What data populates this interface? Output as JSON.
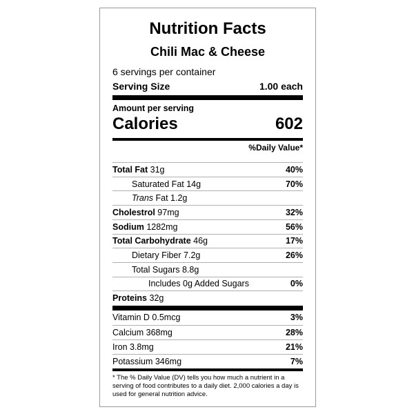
{
  "label": {
    "title": "Nutrition Facts",
    "product": "Chili Mac & Cheese",
    "servings_per_container": "6 servings per container",
    "serving_size_label": "Serving Size",
    "serving_size_value": "1.00 each",
    "amount_per_serving": "Amount per serving",
    "calories_label": "Calories",
    "calories_value": "602",
    "daily_value_header": "%Daily Value*",
    "total_fat": {
      "name": "Total Fat",
      "amount": " 31g",
      "dv": "40%"
    },
    "saturated_fat": {
      "name": "Saturated Fat 14g",
      "dv": "70%"
    },
    "trans_fat": {
      "italic": "Trans",
      "rest": " Fat 1.2g"
    },
    "cholesterol": {
      "name": "Cholestrol",
      "amount": " 97mg",
      "dv": "32%"
    },
    "sodium": {
      "name": "Sodium",
      "amount": " 1282mg",
      "dv": "56%"
    },
    "total_carbohydrate": {
      "name": "Total Carbohydrate",
      "amount": " 46g",
      "dv": "17%"
    },
    "dietary_fiber": {
      "name": "Dietary Fiber 7.2g",
      "dv": "26%"
    },
    "total_sugars": {
      "name": "Total Sugars 8.8g"
    },
    "added_sugars": {
      "name": "Includes 0g Added Sugars",
      "dv": "0%"
    },
    "proteins": {
      "name": "Proteins",
      "amount": " 32g"
    },
    "vitamin_d": {
      "name": "Vitamin D 0.5mcg",
      "dv": "3%"
    },
    "calcium": {
      "name": "Calcium 368mg",
      "dv": "28%"
    },
    "iron": {
      "name": "Iron 3.8mg",
      "dv": "21%"
    },
    "potassium": {
      "name": "Potassium 346mg",
      "dv": "7%"
    },
    "footnote": "* The % Daily Value (DV) tells you how much a nutrient in a serving of food contributes to a daily diet. 2,000 calories a day is used for general nutrition advice."
  }
}
